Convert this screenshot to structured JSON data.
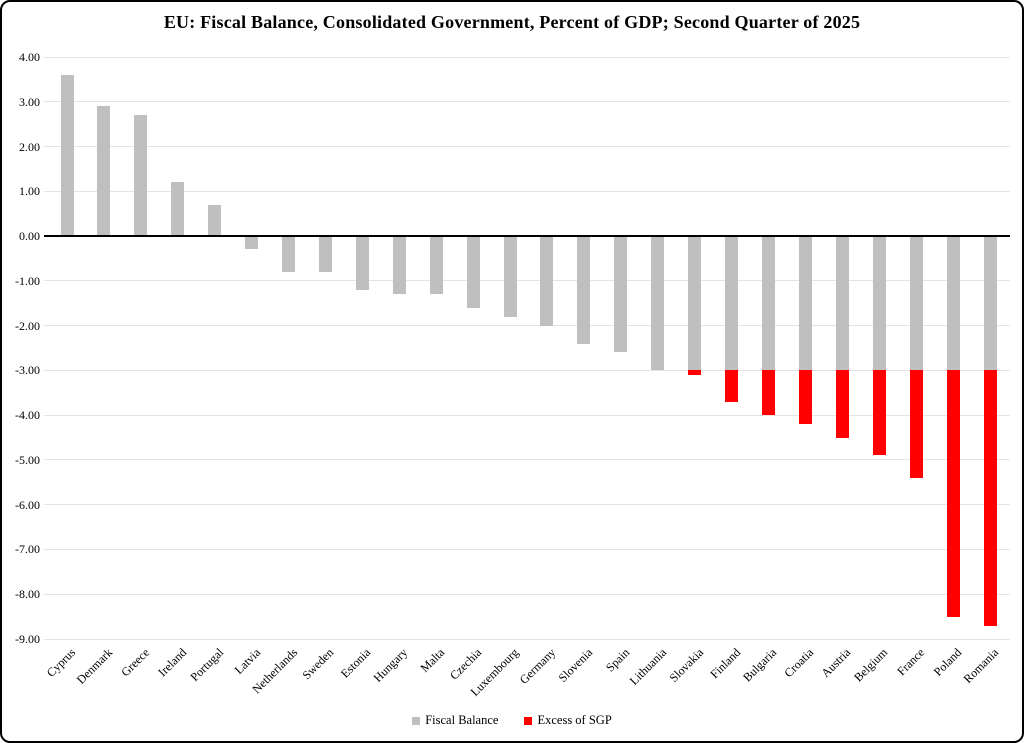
{
  "title": "EU: Fiscal Balance, Consolidated Government, Percent of GDP; Second Quarter of 2025",
  "colors": {
    "bar_gray": "#BFBFBF",
    "bar_red": "#FF0000",
    "gridline": "#E4E4E4",
    "zero_axis": "#000000",
    "background": "#FFFFFF",
    "frame_border": "#000000"
  },
  "legend": [
    {
      "label": "Fiscal Balance",
      "color": "#BFBFBF"
    },
    {
      "label": "Excess of SGP",
      "color": "#FF0000"
    }
  ],
  "chart_data": {
    "type": "bar",
    "title": "EU: Fiscal Balance, Consolidated Government, Percent of GDP; Second Quarter of 2025",
    "categories": [
      "Cyprus",
      "Denmark",
      "Greece",
      "Ireland",
      "Portugal",
      "Latvia",
      "Netherlands",
      "Sweden",
      "Estonia",
      "Hungary",
      "Malta",
      "Czechia",
      "Luxembourg",
      "Germany",
      "Slovenia",
      "Spain",
      "Lithuania",
      "Slovakia",
      "Finland",
      "Bulgaria",
      "Croatia",
      "Austria",
      "Belgium",
      "France",
      "Poland",
      "Romania"
    ],
    "values": [
      3.6,
      2.9,
      2.7,
      1.2,
      0.7,
      -0.3,
      -0.8,
      -0.8,
      -1.2,
      -1.3,
      -1.3,
      -1.6,
      -1.8,
      -2.0,
      -2.4,
      -2.6,
      -3.0,
      -3.1,
      -3.7,
      -4.0,
      -4.2,
      -4.5,
      -4.9,
      -5.4,
      -8.5,
      -8.7
    ],
    "sgp_threshold": -3.0,
    "series": [
      {
        "name": "Fiscal Balance",
        "color": "#BFBFBF",
        "values": [
          3.6,
          2.9,
          2.7,
          1.2,
          0.7,
          -0.3,
          -0.8,
          -0.8,
          -1.2,
          -1.3,
          -1.3,
          -1.6,
          -1.8,
          -2.0,
          -2.4,
          -2.6,
          -3.0,
          -3.0,
          -3.0,
          -3.0,
          -3.0,
          -3.0,
          -3.0,
          -3.0,
          -3.0,
          -3.0
        ]
      },
      {
        "name": "Excess of SGP",
        "color": "#FF0000",
        "values": [
          0,
          0,
          0,
          0,
          0,
          0,
          0,
          0,
          0,
          0,
          0,
          0,
          0,
          0,
          0,
          0,
          0,
          -0.1,
          -0.7,
          -1.0,
          -1.2,
          -1.5,
          -1.9,
          -2.4,
          -5.5,
          -5.7
        ]
      }
    ],
    "xlabel": "",
    "ylabel": "",
    "ylim": [
      -9,
      4
    ],
    "ytick_step": 1,
    "yticks": [
      "4.00",
      "3.00",
      "2.00",
      "1.00",
      "0.00",
      "-1.00",
      "-2.00",
      "-3.00",
      "-4.00",
      "-5.00",
      "-6.00",
      "-7.00",
      "-8.00",
      "-9.00"
    ],
    "grid": true,
    "legend_position": "bottom"
  }
}
